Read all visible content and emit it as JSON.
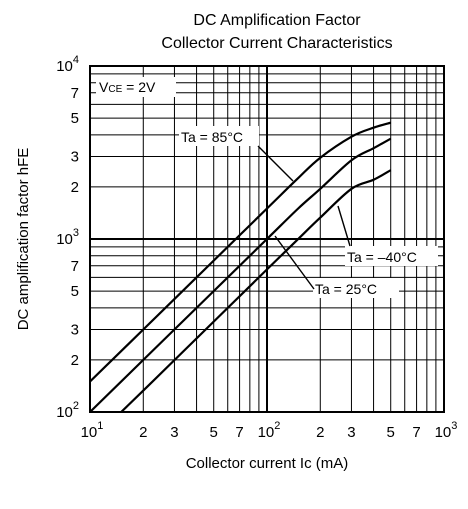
{
  "chart_data": {
    "type": "line",
    "title_line1": "DC Amplification Factor",
    "title_line2": "Collector Current Characteristics",
    "xlabel": "Collector current  Ic (mA)",
    "ylabel": "DC amplification factor  hFE",
    "x_scale": "log",
    "y_scale": "log",
    "xlim": [
      10,
      1000
    ],
    "ylim": [
      100,
      10000
    ],
    "grid": true,
    "x_ticks": [
      {
        "label": "10",
        "sup": "1"
      },
      {
        "label": "2"
      },
      {
        "label": "3"
      },
      {
        "label": "5"
      },
      {
        "label": "7"
      },
      {
        "label": "10",
        "sup": "2"
      },
      {
        "label": "2"
      },
      {
        "label": "3"
      },
      {
        "label": "5"
      },
      {
        "label": "7"
      },
      {
        "label": "10",
        "sup": "3"
      }
    ],
    "y_ticks": [
      {
        "label": "10",
        "sup": "2"
      },
      {
        "label": "2"
      },
      {
        "label": "3"
      },
      {
        "label": "5"
      },
      {
        "label": "7"
      },
      {
        "label": "10",
        "sup": "3"
      },
      {
        "label": "2"
      },
      {
        "label": "3"
      },
      {
        "label": "5"
      },
      {
        "label": "7"
      },
      {
        "label": "10",
        "sup": "4"
      }
    ],
    "condition": {
      "prefix": "V",
      "sub": "CE",
      "rest": " = 2V"
    },
    "series": [
      {
        "name": "Ta = 85°C",
        "x": [
          10,
          20,
          50,
          100,
          150,
          200,
          300,
          400,
          500
        ],
        "y": [
          150,
          300,
          750,
          1500,
          2250,
          2950,
          3900,
          4400,
          4700
        ]
      },
      {
        "name": "Ta = 25°C",
        "x": [
          10,
          20,
          50,
          100,
          150,
          200,
          300,
          400,
          500
        ],
        "y": [
          100,
          200,
          500,
          1000,
          1500,
          1950,
          2850,
          3350,
          3800
        ]
      },
      {
        "name": "Ta = –40°C",
        "x": [
          15,
          20,
          50,
          100,
          150,
          200,
          300,
          400,
          500
        ],
        "y": [
          100,
          133,
          333,
          667,
          1000,
          1330,
          1950,
          2200,
          2500
        ]
      }
    ]
  }
}
